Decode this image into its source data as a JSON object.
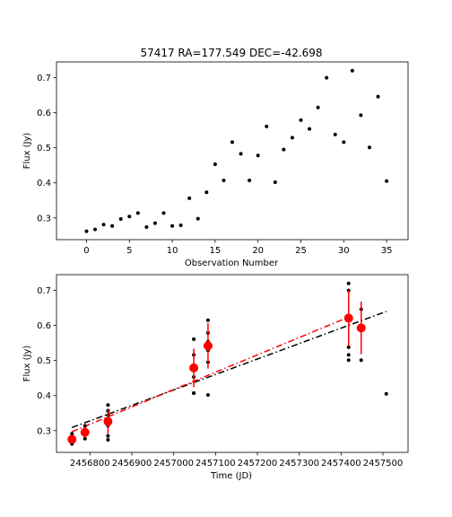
{
  "figure": {
    "title": "57417 RA=177.549 DEC=-42.698"
  },
  "chart_data": [
    {
      "type": "scatter",
      "title": "57417 RA=177.549 DEC=-42.698",
      "xlabel": "Observation Number",
      "ylabel": "Flux (Jy)",
      "xlim": [
        -3.5,
        37.5
      ],
      "ylim": [
        0.238,
        0.745
      ],
      "xticks": [
        0,
        5,
        10,
        15,
        20,
        25,
        30,
        35
      ],
      "yticks": [
        0.3,
        0.4,
        0.5,
        0.6,
        0.7
      ],
      "grid": false,
      "series": [
        {
          "color": "#000000",
          "marker": "dot",
          "x": [
            0,
            1,
            2,
            3,
            4,
            5,
            6,
            7,
            8,
            9,
            10,
            11,
            12,
            13,
            14,
            15,
            16,
            17,
            18,
            19,
            20,
            21,
            22,
            23,
            24,
            25,
            26,
            27,
            28,
            29,
            30,
            31,
            32,
            33,
            34,
            35
          ],
          "y": [
            0.262,
            0.267,
            0.281,
            0.277,
            0.297,
            0.304,
            0.314,
            0.274,
            0.285,
            0.314,
            0.277,
            0.279,
            0.356,
            0.298,
            0.373,
            0.453,
            0.407,
            0.516,
            0.483,
            0.407,
            0.478,
            0.561,
            0.402,
            0.495,
            0.529,
            0.579,
            0.554,
            0.615,
            0.7,
            0.538,
            0.516,
            0.72,
            0.593,
            0.501,
            0.646,
            0.405
          ]
        }
      ]
    },
    {
      "type": "scatter",
      "xlabel": "Time (JD)",
      "ylabel": "Flux (Jy)",
      "xlim": [
        2456720,
        2457560
      ],
      "ylim": [
        0.238,
        0.745
      ],
      "xticks": [
        2456800,
        2456900,
        2457000,
        2457100,
        2457200,
        2457300,
        2457400,
        2457500
      ],
      "yticks": [
        0.3,
        0.4,
        0.5,
        0.6,
        0.7
      ],
      "grid": false,
      "series": [
        {
          "color": "#000000",
          "marker": "dot",
          "x": [
            2456757,
            2456757,
            2456757,
            2456757,
            2456788,
            2456788,
            2456788,
            2456788,
            2456843,
            2456843,
            2456843,
            2456843,
            2456843,
            2456843,
            2456843,
            2457048,
            2457048,
            2457048,
            2457048,
            2457048,
            2457048,
            2457082,
            2457082,
            2457082,
            2457082,
            2457082,
            2457082,
            2457418,
            2457418,
            2457418,
            2457418,
            2457418,
            2457448,
            2457448,
            2457448,
            2457508
          ],
          "y": [
            0.262,
            0.267,
            0.281,
            0.291,
            0.277,
            0.297,
            0.304,
            0.314,
            0.274,
            0.285,
            0.314,
            0.344,
            0.357,
            0.373,
            0.356,
            0.407,
            0.453,
            0.407,
            0.478,
            0.516,
            0.561,
            0.402,
            0.495,
            0.529,
            0.579,
            0.554,
            0.615,
            0.7,
            0.538,
            0.516,
            0.72,
            0.501,
            0.593,
            0.646,
            0.501,
            0.405
          ]
        },
        {
          "color": "#ff0000",
          "marker": "big-dot-errorbar",
          "x": [
            2456757,
            2456788,
            2456843,
            2457048,
            2457082,
            2457418,
            2457448
          ],
          "y": [
            0.275,
            0.295,
            0.326,
            0.479,
            0.542,
            0.621,
            0.593
          ],
          "yerr": [
            0.012,
            0.015,
            0.035,
            0.055,
            0.065,
            0.08,
            0.075
          ]
        }
      ],
      "fits": [
        {
          "style": "dash-dot",
          "color": "#000000",
          "x": [
            2456757,
            2457508
          ],
          "y": [
            0.309,
            0.64
          ]
        },
        {
          "style": "dash-dot",
          "color": "#ff0000",
          "x": [
            2456757,
            2457418
          ],
          "y": [
            0.297,
            0.624
          ]
        }
      ]
    }
  ]
}
